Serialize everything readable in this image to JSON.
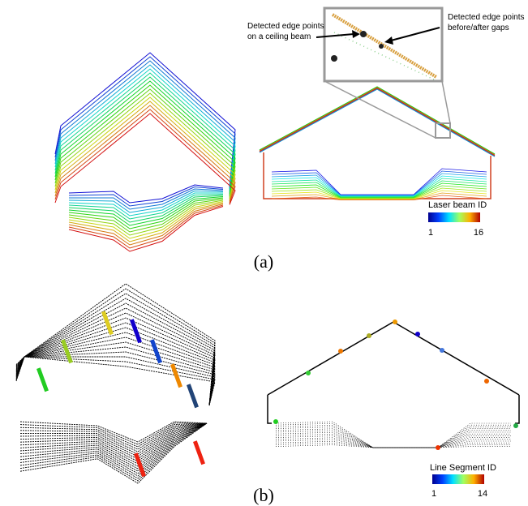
{
  "panel_a": {
    "callout_left": [
      "Detected edge points",
      "on a ceiling beam"
    ],
    "callout_right": [
      "Detected edge points",
      "before/after gaps"
    ],
    "colorbar": {
      "label": "Laser beam ID",
      "min": 1,
      "max": 16
    },
    "caption": "(a)"
  },
  "panel_b": {
    "colorbar": {
      "label": "Line Segment ID",
      "min": 1,
      "max": 14
    },
    "caption": "(b)"
  }
}
